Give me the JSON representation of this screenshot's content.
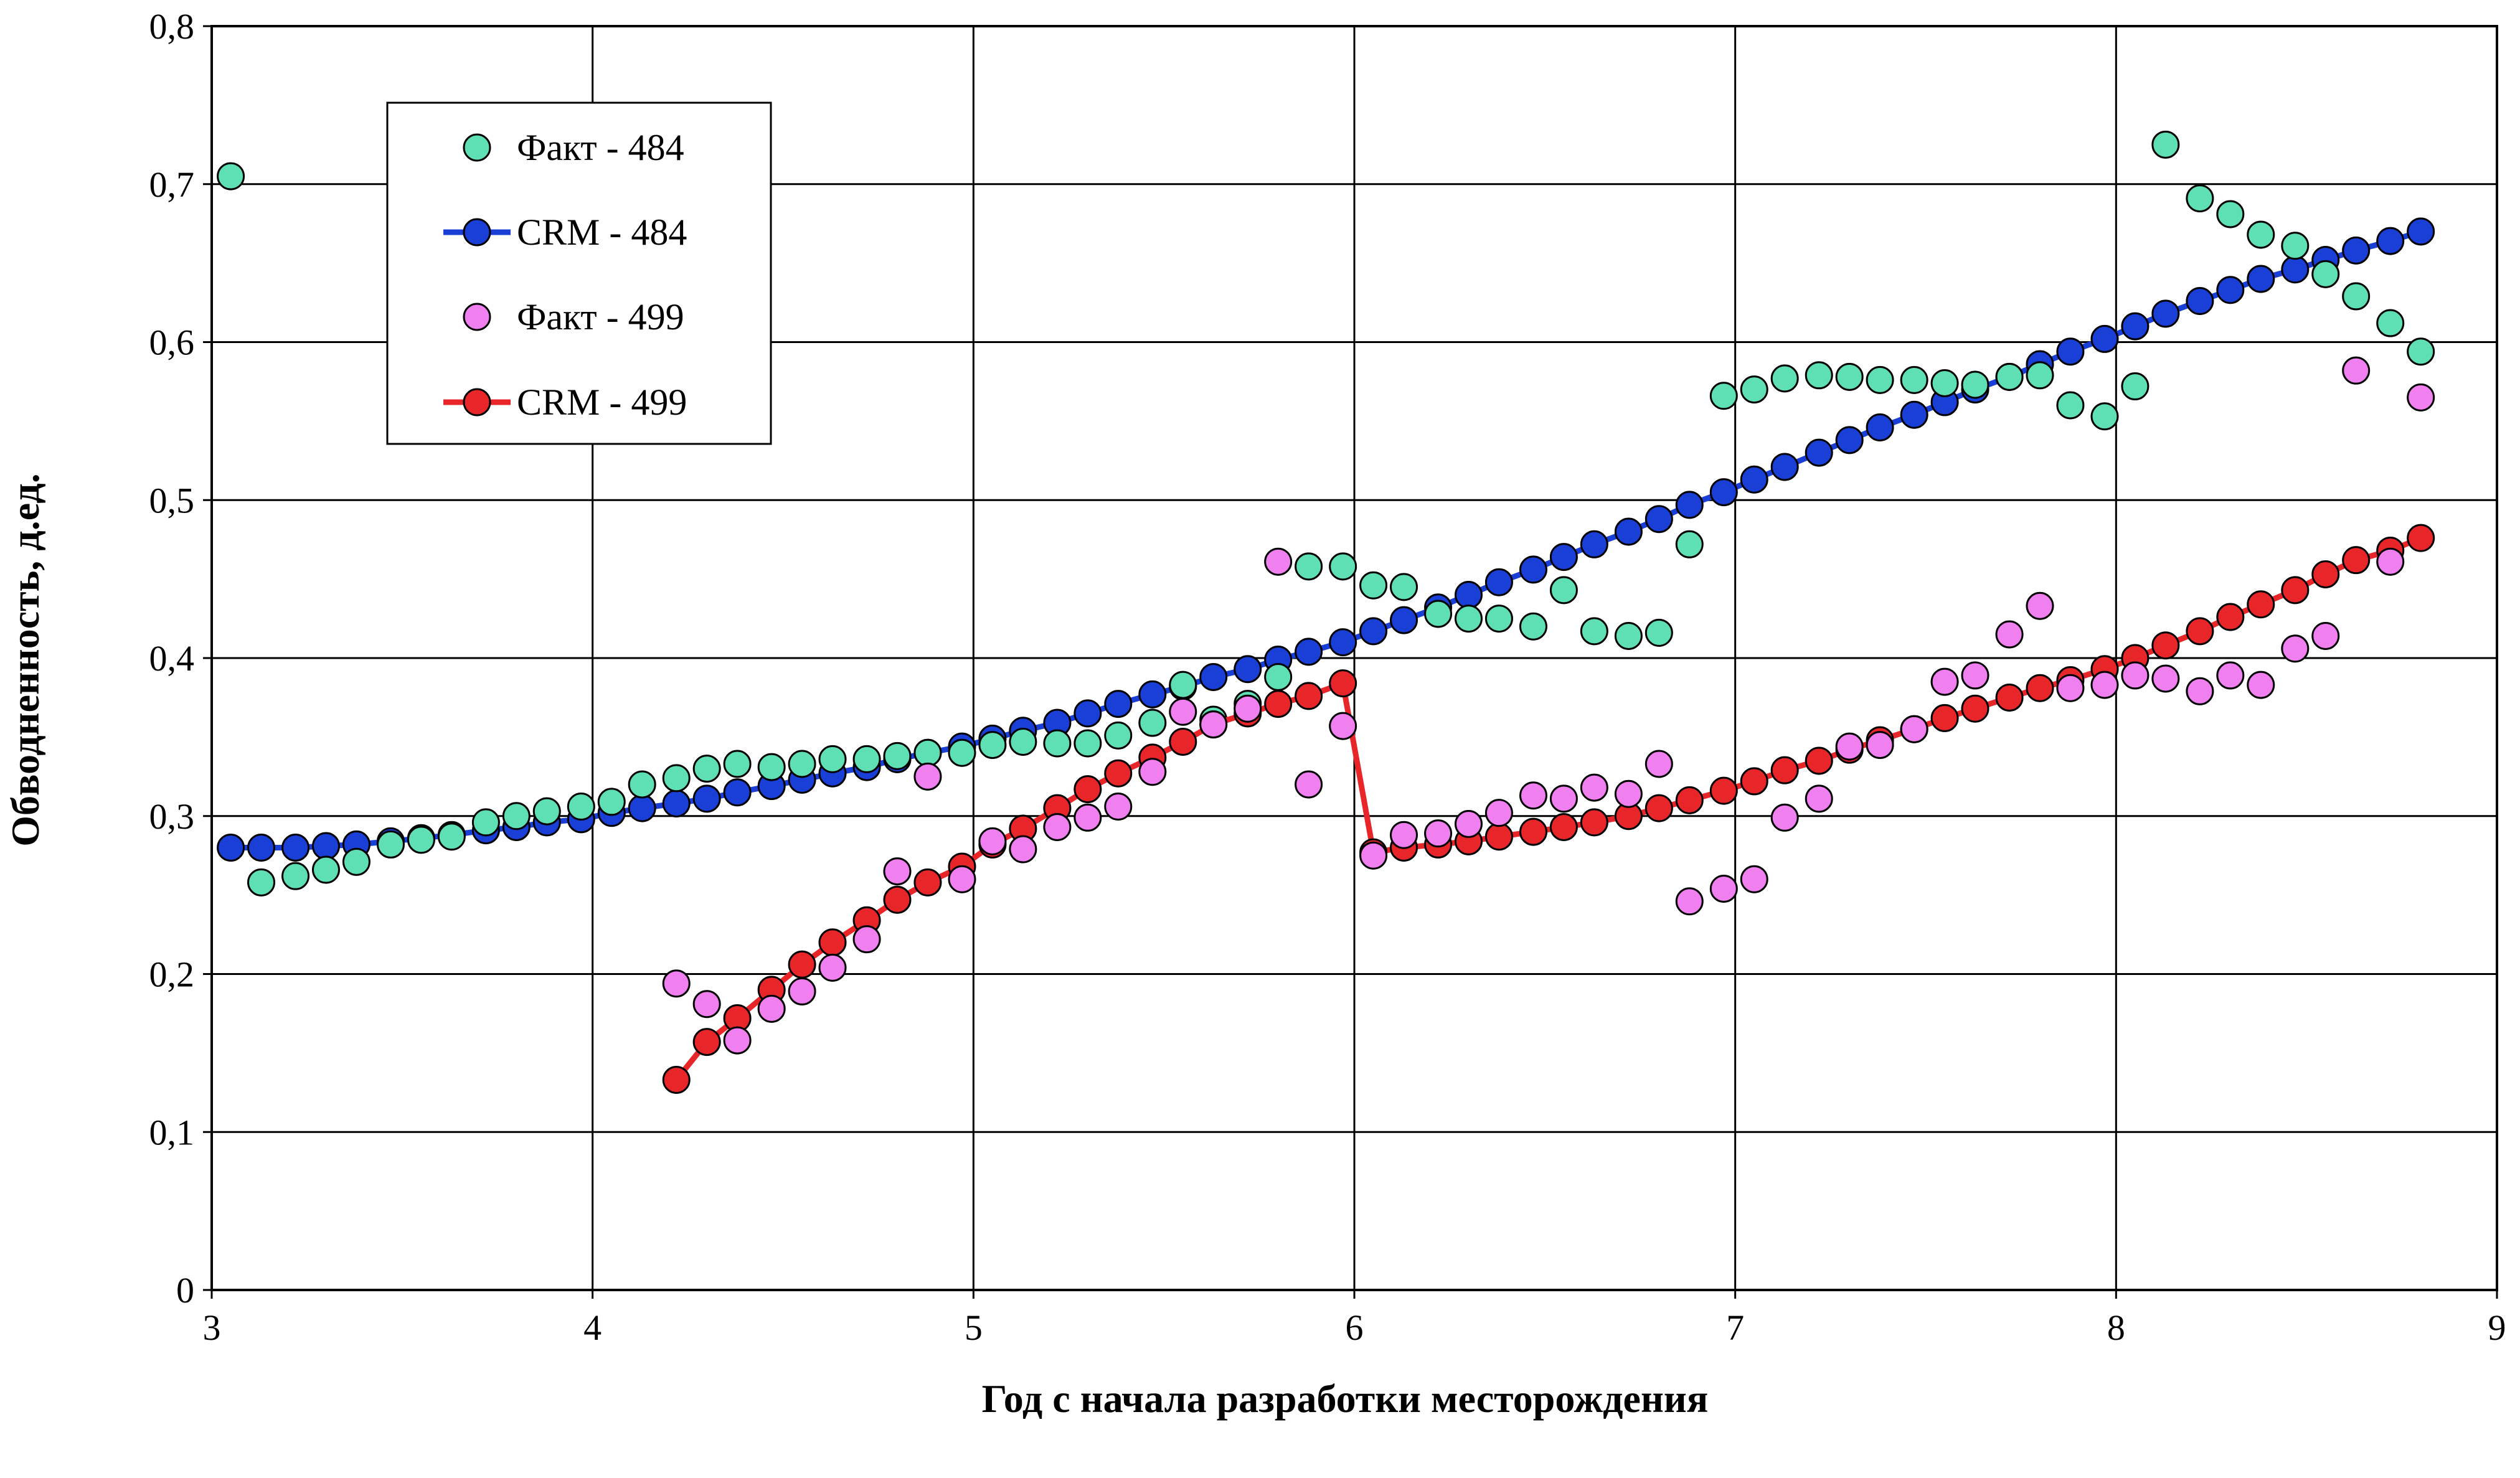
{
  "chart_data": {
    "type": "scatter",
    "xlabel": "Год с начала разработки месторождения",
    "ylabel": "Обводненность, д.ед.",
    "xlim": [
      3,
      9
    ],
    "ylim": [
      0,
      0.8
    ],
    "x_ticks": [
      3,
      4,
      5,
      6,
      7,
      8,
      9
    ],
    "x_tick_labels": [
      "3",
      "4",
      "5",
      "6",
      "7",
      "8",
      "9"
    ],
    "y_ticks": [
      0,
      0.1,
      0.2,
      0.3,
      0.4,
      0.5,
      0.6,
      0.7,
      0.8
    ],
    "y_tick_labels": [
      "0",
      "0,1",
      "0,2",
      "0,3",
      "0,4",
      "0,5",
      "0,6",
      "0,7",
      "0,8"
    ],
    "grid": true,
    "legend_position": "top-left",
    "series": [
      {
        "name": "CRM - 484",
        "style": "line-marker",
        "color": "#1a3fd6",
        "x": [
          3.05,
          3.13,
          3.22,
          3.3,
          3.38,
          3.47,
          3.55,
          3.63,
          3.72,
          3.8,
          3.88,
          3.97,
          4.05,
          4.13,
          4.22,
          4.3,
          4.38,
          4.47,
          4.55,
          4.63,
          4.72,
          4.8,
          4.88,
          4.97,
          5.05,
          5.13,
          5.22,
          5.3,
          5.38,
          5.47,
          5.55,
          5.63,
          5.72,
          5.8,
          5.88,
          5.97,
          6.05,
          6.13,
          6.22,
          6.3,
          6.38,
          6.47,
          6.55,
          6.63,
          6.72,
          6.8,
          6.88,
          6.97,
          7.05,
          7.13,
          7.22,
          7.3,
          7.38,
          7.47,
          7.55,
          7.63,
          7.72,
          7.8,
          7.88,
          7.97,
          8.05,
          8.13,
          8.22,
          8.3,
          8.38,
          8.47,
          8.55,
          8.63,
          8.72,
          8.8
        ],
        "y": [
          0.28,
          0.28,
          0.28,
          0.281,
          0.282,
          0.284,
          0.286,
          0.288,
          0.291,
          0.293,
          0.296,
          0.298,
          0.302,
          0.305,
          0.308,
          0.311,
          0.315,
          0.319,
          0.323,
          0.327,
          0.331,
          0.336,
          0.34,
          0.344,
          0.349,
          0.354,
          0.359,
          0.365,
          0.371,
          0.377,
          0.382,
          0.388,
          0.393,
          0.399,
          0.404,
          0.41,
          0.417,
          0.424,
          0.432,
          0.44,
          0.448,
          0.456,
          0.464,
          0.472,
          0.48,
          0.488,
          0.497,
          0.505,
          0.513,
          0.521,
          0.53,
          0.538,
          0.546,
          0.554,
          0.562,
          0.57,
          0.578,
          0.586,
          0.594,
          0.602,
          0.61,
          0.618,
          0.626,
          0.633,
          0.64,
          0.646,
          0.652,
          0.658,
          0.664,
          0.67
        ]
      },
      {
        "name": "Факт - 484",
        "style": "marker",
        "color": "#5fe0b4",
        "x": [
          3.05,
          3.13,
          3.22,
          3.3,
          3.38,
          3.47,
          3.55,
          3.63,
          3.72,
          3.8,
          3.88,
          3.97,
          4.05,
          4.13,
          4.22,
          4.3,
          4.38,
          4.47,
          4.55,
          4.63,
          4.72,
          4.8,
          4.88,
          4.97,
          5.05,
          5.13,
          5.22,
          5.3,
          5.38,
          5.47,
          5.55,
          5.63,
          5.72,
          5.8,
          5.88,
          5.97,
          6.05,
          6.13,
          6.22,
          6.3,
          6.38,
          6.47,
          6.55,
          6.63,
          6.72,
          6.8,
          6.88,
          6.97,
          7.05,
          7.13,
          7.22,
          7.3,
          7.38,
          7.47,
          7.55,
          7.63,
          7.72,
          7.8,
          7.88,
          7.97,
          8.05,
          8.13,
          8.22,
          8.3,
          8.38,
          8.47,
          8.55,
          8.63,
          8.72,
          8.8
        ],
        "y": [
          0.705,
          0.258,
          0.262,
          0.266,
          0.271,
          0.282,
          0.285,
          0.287,
          0.296,
          0.3,
          0.303,
          0.306,
          0.309,
          0.32,
          0.324,
          0.33,
          0.333,
          0.331,
          0.333,
          0.336,
          0.336,
          0.338,
          0.34,
          0.34,
          0.345,
          0.347,
          0.346,
          0.346,
          0.351,
          0.359,
          0.383,
          0.361,
          0.371,
          0.388,
          0.458,
          0.458,
          0.446,
          0.445,
          0.428,
          0.425,
          0.425,
          0.42,
          0.443,
          0.417,
          0.414,
          0.416,
          0.472,
          0.566,
          0.57,
          0.577,
          0.579,
          0.578,
          0.576,
          0.576,
          0.574,
          0.573,
          0.578,
          0.579,
          0.56,
          0.553,
          0.572,
          0.725,
          0.691,
          0.681,
          0.668,
          0.661,
          0.643,
          0.629,
          0.612,
          0.594
        ]
      },
      {
        "name": "CRM - 499",
        "style": "line-marker",
        "color": "#e8262a",
        "x": [
          4.22,
          4.3,
          4.38,
          4.47,
          4.55,
          4.63,
          4.72,
          4.8,
          4.88,
          4.97,
          5.05,
          5.13,
          5.22,
          5.3,
          5.38,
          5.47,
          5.55,
          5.63,
          5.72,
          5.8,
          5.88,
          5.97,
          6.05,
          6.13,
          6.22,
          6.3,
          6.38,
          6.47,
          6.55,
          6.63,
          6.72,
          6.8,
          6.88,
          6.97,
          7.05,
          7.13,
          7.22,
          7.3,
          7.38,
          7.47,
          7.55,
          7.63,
          7.72,
          7.8,
          7.88,
          7.97,
          8.05,
          8.13,
          8.22,
          8.3,
          8.38,
          8.47,
          8.55,
          8.63,
          8.72,
          8.8
        ],
        "y": [
          0.133,
          0.157,
          0.172,
          0.19,
          0.206,
          0.22,
          0.234,
          0.247,
          0.258,
          0.268,
          0.282,
          0.292,
          0.305,
          0.317,
          0.327,
          0.337,
          0.347,
          0.358,
          0.365,
          0.371,
          0.376,
          0.384,
          0.277,
          0.28,
          0.282,
          0.284,
          0.287,
          0.29,
          0.293,
          0.296,
          0.3,
          0.305,
          0.31,
          0.316,
          0.322,
          0.329,
          0.335,
          0.342,
          0.348,
          0.355,
          0.362,
          0.368,
          0.375,
          0.381,
          0.386,
          0.393,
          0.4,
          0.408,
          0.417,
          0.426,
          0.434,
          0.443,
          0.453,
          0.462,
          0.468,
          0.476
        ]
      },
      {
        "name": "Факт - 499",
        "style": "marker",
        "color": "#f07ff0",
        "x": [
          4.22,
          4.3,
          4.38,
          4.47,
          4.55,
          4.63,
          4.72,
          4.8,
          4.88,
          4.97,
          5.05,
          5.13,
          5.22,
          5.3,
          5.38,
          5.47,
          5.55,
          5.63,
          5.72,
          5.8,
          5.88,
          5.97,
          6.05,
          6.13,
          6.22,
          6.3,
          6.38,
          6.47,
          6.55,
          6.63,
          6.72,
          6.8,
          6.88,
          6.97,
          7.05,
          7.13,
          7.22,
          7.3,
          7.38,
          7.47,
          7.55,
          7.63,
          7.72,
          7.8,
          7.88,
          7.97,
          8.05,
          8.13,
          8.22,
          8.3,
          8.38,
          8.47,
          8.55,
          8.63,
          8.72,
          8.8
        ],
        "y": [
          0.194,
          0.181,
          0.158,
          0.178,
          0.189,
          0.204,
          0.222,
          0.265,
          0.325,
          0.26,
          0.284,
          0.279,
          0.293,
          0.299,
          0.306,
          0.328,
          0.366,
          0.358,
          0.368,
          0.461,
          0.32,
          0.357,
          0.275,
          0.288,
          0.289,
          0.295,
          0.302,
          0.313,
          0.311,
          0.318,
          0.314,
          0.333,
          0.246,
          0.254,
          0.26,
          0.299,
          0.311,
          0.344,
          0.345,
          0.355,
          0.385,
          0.389,
          0.415,
          0.433,
          0.381,
          0.383,
          0.389,
          0.387,
          0.379,
          0.389,
          0.383,
          0.406,
          0.414,
          0.582,
          0.461,
          0.565
        ]
      }
    ]
  }
}
